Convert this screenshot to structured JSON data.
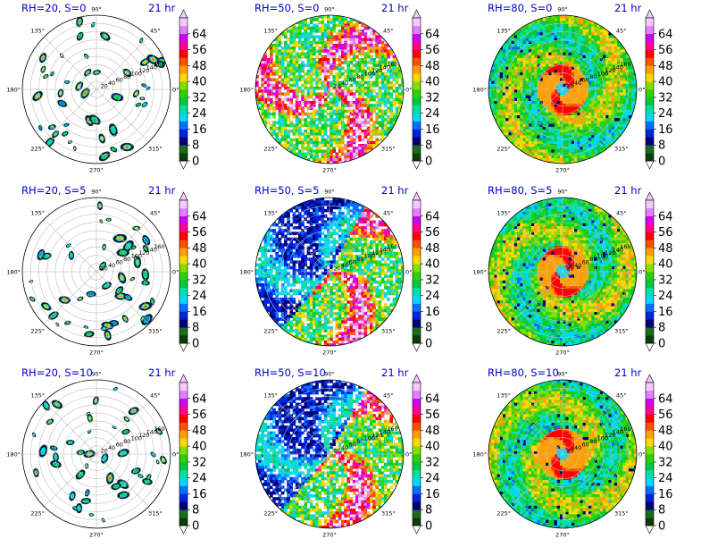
{
  "chart_data": [
    {
      "type": "heatmap",
      "title_left": "RH=20, S=0",
      "title_right": "21 hr",
      "field": "rh20_s0",
      "layout": {
        "col": 0,
        "row": 0
      }
    },
    {
      "type": "heatmap",
      "title_left": "RH=50, S=0",
      "title_right": "21 hr",
      "field": "rh50_s0",
      "layout": {
        "col": 1,
        "row": 0
      }
    },
    {
      "type": "heatmap",
      "title_left": "RH=80, S=0",
      "title_right": "21 hr",
      "field": "rh80_s0",
      "layout": {
        "col": 2,
        "row": 0
      }
    },
    {
      "type": "heatmap",
      "title_left": "RH=20, S=5",
      "title_right": "21 hr",
      "field": "rh20_s5",
      "layout": {
        "col": 0,
        "row": 1
      }
    },
    {
      "type": "heatmap",
      "title_left": "RH=50, S=5",
      "title_right": "21 hr",
      "field": "rh50_s5",
      "layout": {
        "col": 1,
        "row": 1
      }
    },
    {
      "type": "heatmap",
      "title_left": "RH=80, S=5",
      "title_right": "21 hr",
      "field": "rh80_s5",
      "layout": {
        "col": 2,
        "row": 1
      }
    },
    {
      "type": "heatmap",
      "title_left": "RH=20, S=10",
      "title_right": "21 hr",
      "field": "rh20_s10",
      "layout": {
        "col": 0,
        "row": 2
      }
    },
    {
      "type": "heatmap",
      "title_left": "RH=50, S=10",
      "title_right": "21 hr",
      "field": "rh50_s10",
      "layout": {
        "col": 1,
        "row": 2
      }
    },
    {
      "type": "heatmap",
      "title_left": "RH=80, S=10",
      "title_right": "21 hr",
      "field": "rh80_s10",
      "layout": {
        "col": 2,
        "row": 2
      }
    }
  ],
  "polar_axes": {
    "angle_ticks": [
      "0°",
      "45°",
      "90°",
      "135°",
      "180°",
      "225°",
      "270°",
      "315°"
    ],
    "radius_ticks": [
      "20",
      "40",
      "60",
      "80",
      "100",
      "120",
      "140",
      "160"
    ],
    "rmax": 180,
    "grid": true
  },
  "colorbar": {
    "ticks": [
      "0",
      "8",
      "16",
      "24",
      "32",
      "40",
      "48",
      "56",
      "64"
    ],
    "levels": [
      0,
      4,
      8,
      12,
      16,
      20,
      24,
      28,
      32,
      36,
      40,
      44,
      48,
      52,
      56,
      60,
      64,
      68
    ],
    "colors": [
      "#0b3d0b",
      "#1a6b1a",
      "#00007a",
      "#0022dd",
      "#0070ff",
      "#00d8ff",
      "#00e0a0",
      "#00c840",
      "#30d000",
      "#80e000",
      "#ffd800",
      "#ffa000",
      "#ff5000",
      "#ff0000",
      "#ff0090",
      "#d000f0",
      "#e080ff",
      "#f5c8ff"
    ],
    "extend": "both"
  }
}
